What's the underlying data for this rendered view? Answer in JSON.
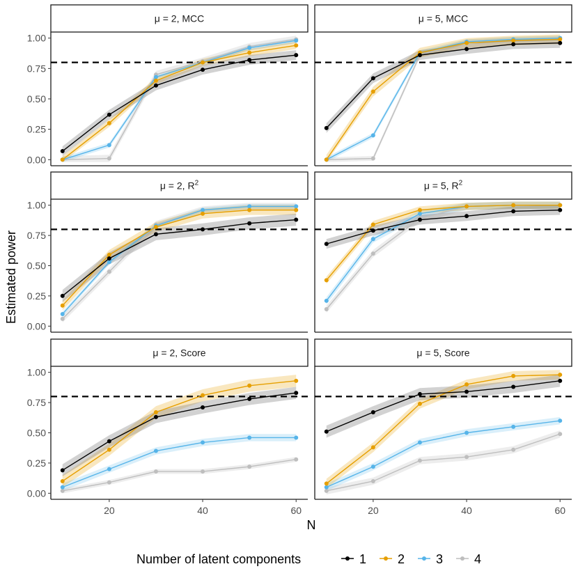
{
  "chart_data": {
    "type": "line",
    "ylabel": "Estimated power",
    "xlabel": "N",
    "x": [
      10,
      20,
      30,
      40,
      50,
      60
    ],
    "xticks": [
      20,
      40,
      60
    ],
    "xlim": [
      7.5,
      62.5
    ],
    "ylim": [
      -0.05,
      1.05
    ],
    "yticks": [
      "0.00",
      "0.25",
      "0.50",
      "0.75",
      "1.00"
    ],
    "ytick_values": [
      0,
      0.25,
      0.5,
      0.75,
      1
    ],
    "reference_line": 0.8,
    "legend": {
      "title": "Number of latent components",
      "placement": "bottom",
      "entries": [
        {
          "label": "1",
          "color": "#000000"
        },
        {
          "label": "2",
          "color": "#E69F00"
        },
        {
          "label": "3",
          "color": "#56B4E9"
        },
        {
          "label": "4",
          "color": "#BEBEBE"
        }
      ]
    },
    "panels": [
      {
        "strip": {
          "mu": "μ",
          "sep": " = 2, ",
          "metric": "MCC",
          "sup": ""
        },
        "series": [
          {
            "name": "1",
            "values": [
              0.07,
              0.37,
              0.61,
              0.74,
              0.82,
              0.86
            ],
            "band": 0.04
          },
          {
            "name": "2",
            "values": [
              0.0,
              0.3,
              0.65,
              0.8,
              0.88,
              0.94
            ],
            "band": 0.03
          },
          {
            "name": "3",
            "values": [
              0.0,
              0.12,
              0.68,
              0.8,
              0.92,
              0.98
            ],
            "band": 0.02
          },
          {
            "name": "4",
            "values": [
              0.0,
              0.01,
              0.7,
              0.81,
              0.93,
              0.99
            ],
            "band": 0.03
          }
        ]
      },
      {
        "strip": {
          "mu": "μ",
          "sep": " = 5, ",
          "metric": "MCC",
          "sup": ""
        },
        "series": [
          {
            "name": "1",
            "values": [
              0.26,
              0.67,
              0.86,
              0.91,
              0.95,
              0.96
            ],
            "band": 0.04
          },
          {
            "name": "2",
            "values": [
              0.0,
              0.56,
              0.88,
              0.96,
              0.98,
              0.99
            ],
            "band": 0.04
          },
          {
            "name": "3",
            "values": [
              0.0,
              0.2,
              0.88,
              0.97,
              0.99,
              1.0
            ],
            "band": 0.02
          },
          {
            "name": "4",
            "values": [
              0.0,
              0.01,
              0.86,
              0.97,
              0.99,
              1.0
            ],
            "band": 0.02
          }
        ]
      },
      {
        "strip": {
          "mu": "μ",
          "sep": " = 2, ",
          "metric": "R",
          "sup": "2"
        },
        "series": [
          {
            "name": "1",
            "values": [
              0.25,
              0.56,
              0.76,
              0.8,
              0.85,
              0.88
            ],
            "band": 0.05
          },
          {
            "name": "2",
            "values": [
              0.17,
              0.59,
              0.82,
              0.93,
              0.96,
              0.96
            ],
            "band": 0.04
          },
          {
            "name": "3",
            "values": [
              0.1,
              0.53,
              0.83,
              0.96,
              0.99,
              0.99
            ],
            "band": 0.02
          },
          {
            "name": "4",
            "values": [
              0.06,
              0.45,
              0.84,
              0.96,
              0.99,
              0.99
            ],
            "band": 0.03
          }
        ]
      },
      {
        "strip": {
          "mu": "μ",
          "sep": " = 5, ",
          "metric": "R",
          "sup": "2"
        },
        "series": [
          {
            "name": "1",
            "values": [
              0.68,
              0.79,
              0.88,
              0.91,
              0.95,
              0.96
            ],
            "band": 0.04
          },
          {
            "name": "2",
            "values": [
              0.38,
              0.84,
              0.96,
              0.99,
              1.0,
              1.0
            ],
            "band": 0.03
          },
          {
            "name": "3",
            "values": [
              0.21,
              0.72,
              0.93,
              0.99,
              1.0,
              1.0
            ],
            "band": 0.03
          },
          {
            "name": "4",
            "values": [
              0.14,
              0.6,
              0.89,
              0.99,
              1.0,
              1.0
            ],
            "band": 0.03
          }
        ]
      },
      {
        "strip": {
          "mu": "μ",
          "sep": " = 2, ",
          "metric": "Score",
          "sup": ""
        },
        "series": [
          {
            "name": "1",
            "values": [
              0.19,
              0.43,
              0.63,
              0.71,
              0.78,
              0.83
            ],
            "band": 0.05
          },
          {
            "name": "2",
            "values": [
              0.1,
              0.36,
              0.67,
              0.81,
              0.89,
              0.93
            ],
            "band": 0.05
          },
          {
            "name": "3",
            "values": [
              0.05,
              0.2,
              0.35,
              0.42,
              0.46,
              0.46
            ],
            "band": 0.03
          },
          {
            "name": "4",
            "values": [
              0.02,
              0.09,
              0.18,
              0.18,
              0.22,
              0.28
            ],
            "band": 0.02
          }
        ]
      },
      {
        "strip": {
          "mu": "μ",
          "sep": " = 5, ",
          "metric": "Score",
          "sup": ""
        },
        "series": [
          {
            "name": "1",
            "values": [
              0.51,
              0.67,
              0.82,
              0.84,
              0.88,
              0.93
            ],
            "band": 0.05
          },
          {
            "name": "2",
            "values": [
              0.08,
              0.38,
              0.74,
              0.9,
              0.97,
              0.98
            ],
            "band": 0.04
          },
          {
            "name": "3",
            "values": [
              0.05,
              0.22,
              0.42,
              0.5,
              0.55,
              0.6
            ],
            "band": 0.03
          },
          {
            "name": "4",
            "values": [
              0.02,
              0.1,
              0.27,
              0.3,
              0.36,
              0.49
            ],
            "band": 0.03
          }
        ]
      }
    ]
  }
}
